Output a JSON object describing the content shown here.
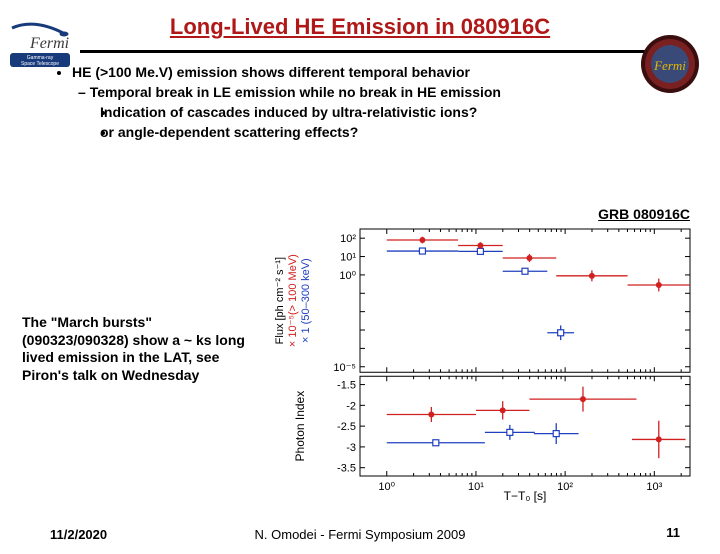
{
  "title": "Long-Lived HE Emission in 080916C",
  "bullets": {
    "l1": "HE (>100 Me.V) emission shows different temporal behavior",
    "l2": "Temporal break in LE emission while no break in HE emission",
    "l3a": "Indication of cascades induced by ultra-relativistic ions?",
    "l3b": "or angle-dependent scattering effects?"
  },
  "grb_label": "GRB 080916C",
  "side_text": "The \"March bursts\" (090323/090328) show a ~ ks long lived emission in the LAT, see Piron's talk on Wednesday",
  "footer": {
    "date": "11/2/2020",
    "center": "N. Omodei - Fermi Symposium 2009",
    "page": "11"
  },
  "logos": {
    "left": {
      "badge_bg": "#163a7a",
      "badge_text": "Gamma-ray\nSpace Telescope",
      "swoosh": "#163a7a",
      "name": "Fermi",
      "name_color": "#3b3b3b"
    },
    "right": {
      "ring": "#6a1515",
      "inner_bg": "#4a5582",
      "text": "Fermi",
      "text_color": "#e6b800"
    }
  },
  "chart": {
    "bg": "#ffffff",
    "axis_color": "#000000",
    "tick_fontsize": 11,
    "label_fontsize": 12,
    "colors": {
      "red": "#d02020",
      "blue": "#2040c0"
    },
    "x": {
      "label": "T−T₀ [s]",
      "ticks": [
        0,
        1,
        2,
        3
      ],
      "tick_labels": [
        "10⁰",
        "10¹",
        "10²",
        "10³"
      ],
      "range": [
        -0.3,
        3.4
      ]
    },
    "top_panel": {
      "y": {
        "ticks": [
          -5,
          -4,
          -3,
          -2,
          -1,
          0,
          1,
          2
        ],
        "tick_labels": [
          "10⁻⁵",
          "",
          "",
          "",
          "",
          "10⁰",
          "10¹",
          "10²"
        ],
        "range": [
          -5.3,
          2.5
        ]
      },
      "ylabel_lines": [
        {
          "text": "Flux [ph cm⁻² s⁻¹]",
          "color": "#000"
        },
        {
          "text": "× 10⁻⁵(> 100 MeV)",
          "color": "#d02020"
        },
        {
          "text": "× 1 (50–300 keV)",
          "color": "#2040c0"
        }
      ],
      "red_points": [
        {
          "x": 0.4,
          "y": 1.9,
          "ex": 0.4,
          "ey": 0.18
        },
        {
          "x": 1.05,
          "y": 1.6,
          "ex": 0.25,
          "ey": 0.18
        },
        {
          "x": 1.6,
          "y": 0.92,
          "ex": 0.3,
          "ey": 0.22
        },
        {
          "x": 2.3,
          "y": -0.05,
          "ex": 0.4,
          "ey": 0.3
        },
        {
          "x": 3.05,
          "y": -0.55,
          "ex": 0.35,
          "ey": 0.35
        }
      ],
      "blue_points": [
        {
          "x": 0.4,
          "y": 1.3,
          "ex": 0.4,
          "ey": 0.1
        },
        {
          "x": 1.05,
          "y": 1.28,
          "ex": 0.25,
          "ey": 0.1
        },
        {
          "x": 1.55,
          "y": 0.2,
          "ex": 0.25,
          "ey": 0.15
        },
        {
          "x": 1.95,
          "y": -3.15,
          "ex": 0.15,
          "ey": 0.4
        }
      ]
    },
    "bottom_panel": {
      "y": {
        "ticks": [
          -3.5,
          -3,
          -2.5,
          -2,
          -1.5
        ],
        "range": [
          -3.7,
          -1.3
        ]
      },
      "ylabel": "Photon Index",
      "red_points": [
        {
          "x": 0.5,
          "y": -2.22,
          "ex": 0.5,
          "ey": 0.18
        },
        {
          "x": 1.3,
          "y": -2.12,
          "ex": 0.3,
          "ey": 0.22
        },
        {
          "x": 2.2,
          "y": -1.85,
          "ex": 0.6,
          "ey": 0.3
        },
        {
          "x": 3.05,
          "y": -2.82,
          "ex": 0.3,
          "ey": 0.45
        }
      ],
      "blue_points": [
        {
          "x": 0.55,
          "y": -2.9,
          "ex": 0.55,
          "ey": 0.05
        },
        {
          "x": 1.38,
          "y": -2.65,
          "ex": 0.28,
          "ey": 0.18
        },
        {
          "x": 1.9,
          "y": -2.68,
          "ex": 0.25,
          "ey": 0.25
        }
      ]
    }
  }
}
